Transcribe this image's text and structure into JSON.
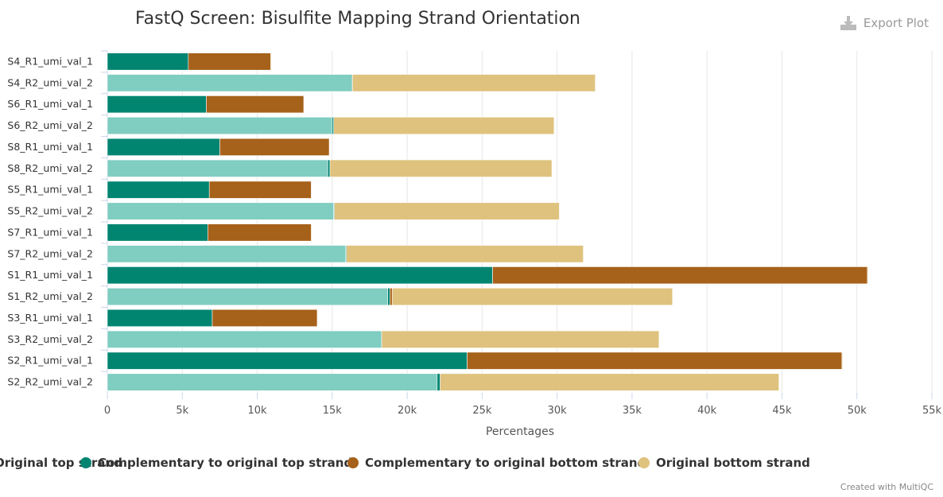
{
  "export": {
    "label": "Export Plot",
    "icon": "download-icon"
  },
  "credit": "Created with MultiQC",
  "colors": {
    "orig_top": "#80cdc1",
    "comp_top": "#018571",
    "comp_bottom": "#a6611a",
    "orig_bottom": "#dfc27d"
  },
  "chart_data": {
    "type": "bar",
    "orientation": "horizontal",
    "stacked": true,
    "title": "FastQ Screen: Bisulfite Mapping Strand Orientation",
    "xlabel": "Percentages",
    "ylabel": "",
    "xlim": [
      0,
      55000
    ],
    "x_ticks": [
      "0",
      "5k",
      "10k",
      "15k",
      "20k",
      "25k",
      "30k",
      "35k",
      "40k",
      "45k",
      "50k",
      "55k"
    ],
    "grid": true,
    "legend_position": "bottom",
    "categories": [
      "S4_R1_umi_val_1",
      "S4_R2_umi_val_2",
      "S6_R1_umi_val_1",
      "S6_R2_umi_val_2",
      "S8_R1_umi_val_1",
      "S8_R2_umi_val_2",
      "S5_R1_umi_val_1",
      "S5_R2_umi_val_2",
      "S7_R1_umi_val_1",
      "S7_R2_umi_val_2",
      "S1_R1_umi_val_1",
      "S1_R2_umi_val_2",
      "S3_R1_umi_val_1",
      "S3_R2_umi_val_2",
      "S2_R1_umi_val_1",
      "S2_R2_umi_val_2"
    ],
    "series": [
      {
        "name": "Original top strand",
        "color": "#80cdc1",
        "values": [
          0,
          16300,
          0,
          15000,
          0,
          14700,
          0,
          15100,
          0,
          15900,
          0,
          18700,
          0,
          18300,
          0,
          22000
        ]
      },
      {
        "name": "Complementary to original top strand",
        "color": "#018571",
        "values": [
          5400,
          50,
          6600,
          100,
          7500,
          150,
          6800,
          50,
          6700,
          50,
          25700,
          150,
          7000,
          0,
          24000,
          200
        ]
      },
      {
        "name": "Complementary to original bottom strand",
        "color": "#a6611a",
        "values": [
          5500,
          0,
          6500,
          0,
          7300,
          0,
          6800,
          0,
          6900,
          0,
          25000,
          150,
          7000,
          0,
          25000,
          0
        ]
      },
      {
        "name": "Original bottom strand",
        "color": "#dfc27d",
        "values": [
          50,
          16200,
          0,
          14700,
          0,
          14800,
          0,
          15000,
          50,
          15800,
          50,
          18700,
          0,
          18500,
          50,
          22600
        ]
      }
    ],
    "legend_labels": [
      "Original top strand",
      "Complementary to original top strand",
      "Complementary to original bottom strand",
      "Original bottom strand"
    ]
  }
}
